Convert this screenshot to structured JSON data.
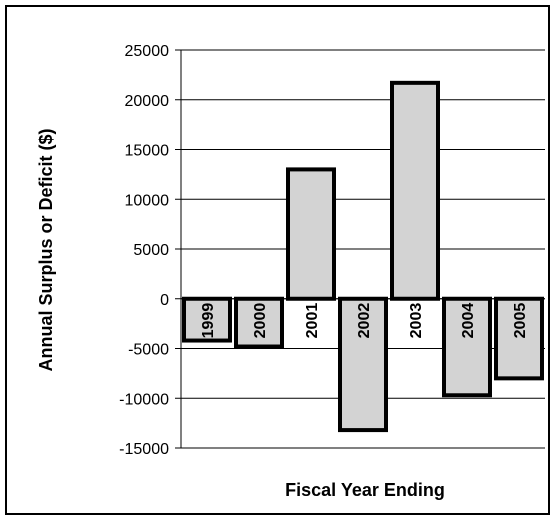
{
  "chart_data": {
    "type": "bar",
    "title": "",
    "xlabel": "Fiscal Year Ending",
    "ylabel": "Annual Surplus or Deficit ($)",
    "categories": [
      "1999",
      "2000",
      "2001",
      "2002",
      "2003",
      "2004",
      "2005"
    ],
    "values": [
      -4200,
      -4800,
      13000,
      -13200,
      21700,
      -9700,
      -8000
    ],
    "ylim": [
      -15000,
      25000
    ],
    "yticks": [
      25000,
      20000,
      15000,
      10000,
      5000,
      0,
      -5000,
      -10000,
      -15000
    ],
    "grid": true,
    "legend": "none",
    "colors": {
      "bar_fill": "#d3d3d3",
      "bar_stroke": "#000000",
      "grid": "#000000"
    }
  }
}
